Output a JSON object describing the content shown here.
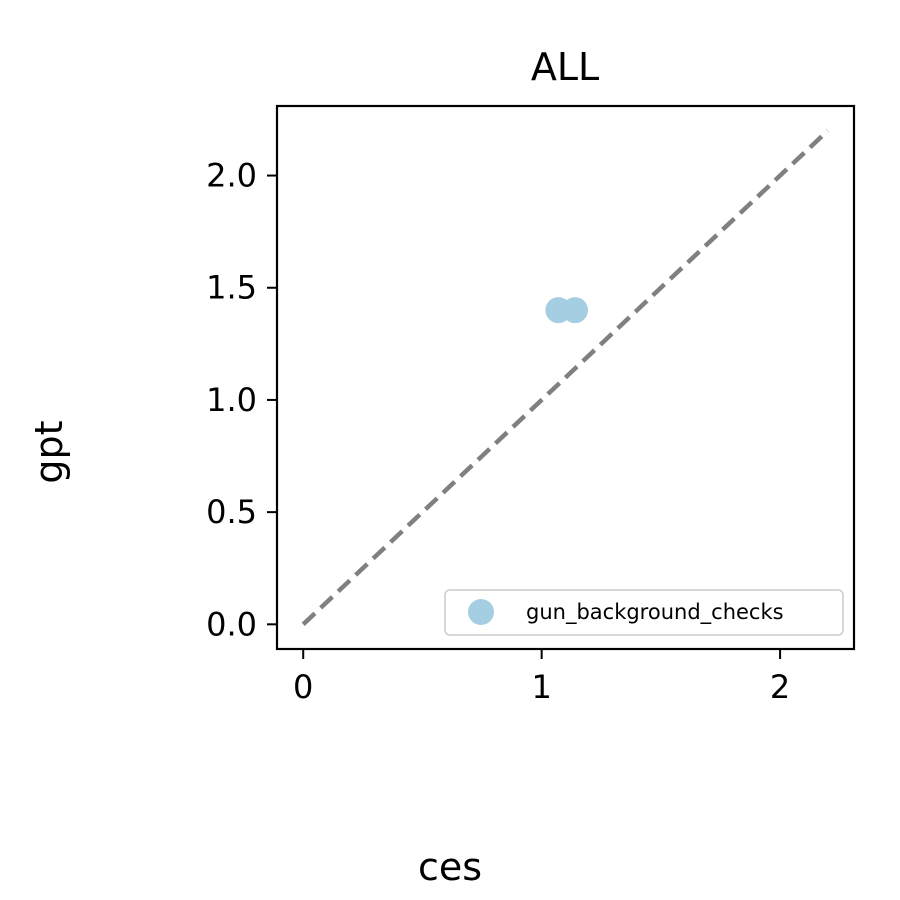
{
  "chart_data": {
    "type": "scatter",
    "title": "ALL",
    "xlabel": "ces",
    "ylabel": "gpt",
    "xlim": [
      -0.11,
      2.31
    ],
    "ylim": [
      -0.11,
      2.31
    ],
    "xticks": [
      0,
      1,
      2
    ],
    "xtick_labels": [
      "0",
      "1",
      "2"
    ],
    "yticks": [
      0.0,
      0.5,
      1.0,
      1.5,
      2.0
    ],
    "ytick_labels": [
      "0.0",
      "0.5",
      "1.0",
      "1.5",
      "2.0"
    ],
    "grid": false,
    "reference_line": {
      "style": "dashed",
      "color": "#808080",
      "from": [
        0,
        0
      ],
      "to": [
        2.2,
        2.2
      ]
    },
    "series": [
      {
        "name": "gun_background_checks",
        "color": "#a6cee3",
        "points": [
          {
            "x": 1.07,
            "y": 1.4
          },
          {
            "x": 1.14,
            "y": 1.4
          }
        ]
      }
    ],
    "legend": {
      "placement": "lower-right"
    }
  }
}
